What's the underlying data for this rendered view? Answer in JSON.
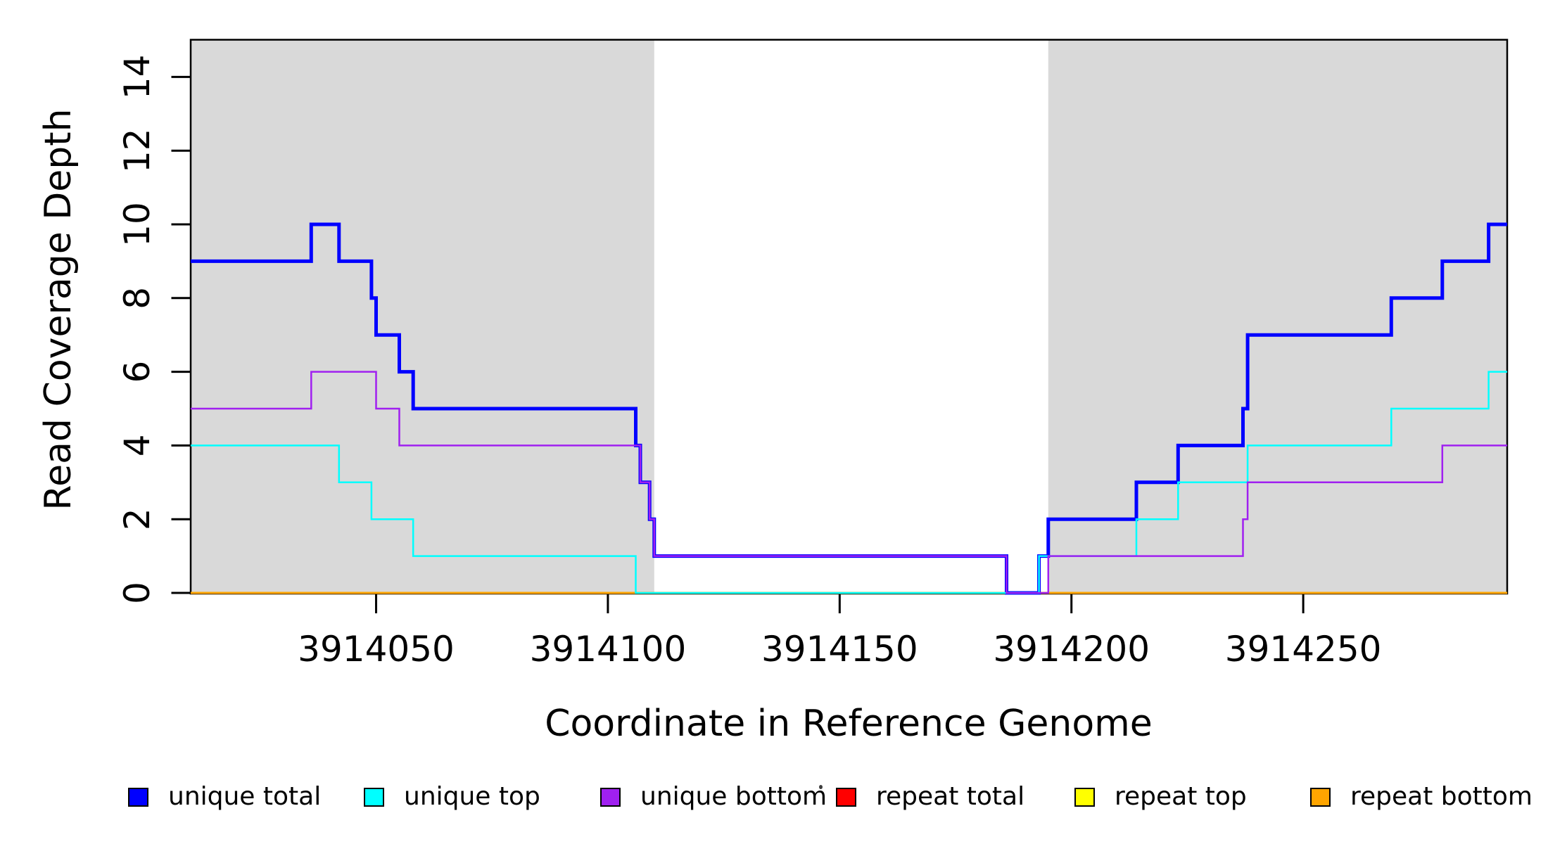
{
  "chart_data": {
    "type": "line",
    "subtype": "step",
    "title": "",
    "xlabel": "Coordinate in Reference Genome",
    "ylabel": "Read Coverage Depth",
    "x_domain": [
      3914010,
      3914294
    ],
    "y_domain": [
      0,
      15
    ],
    "x_ticks": [
      3914050,
      3914100,
      3914150,
      3914200,
      3914250
    ],
    "y_ticks": [
      0,
      2,
      4,
      6,
      8,
      10,
      12,
      14
    ],
    "grid": false,
    "legend_position": "bottom",
    "shade_color": "#d9d9d9",
    "background_color": "#ffffff",
    "axis_color": "#000000",
    "shaded_x_regions": [
      [
        3914010,
        3914110
      ],
      [
        3914195,
        3914294
      ]
    ],
    "series": [
      {
        "name": "repeat total",
        "color": "#ff0000",
        "width": 2.5,
        "points": [
          [
            3914010,
            0
          ]
        ]
      },
      {
        "name": "repeat top",
        "color": "#ffff00",
        "width": 2.5,
        "points": [
          [
            3914010,
            0
          ]
        ]
      },
      {
        "name": "repeat bottom",
        "color": "#ffa500",
        "width": 3,
        "points": [
          [
            3914010,
            0
          ]
        ]
      },
      {
        "name": "unique total",
        "color": "#0000ff",
        "width": 5,
        "points": [
          [
            3914010,
            9
          ],
          [
            3914036,
            10
          ],
          [
            3914042,
            9
          ],
          [
            3914049,
            8
          ],
          [
            3914050,
            7
          ],
          [
            3914055,
            6
          ],
          [
            3914058,
            5
          ],
          [
            3914106,
            4
          ],
          [
            3914107,
            3
          ],
          [
            3914109,
            2
          ],
          [
            3914110,
            1
          ],
          [
            3914186,
            0
          ],
          [
            3914193,
            1
          ],
          [
            3914195,
            2
          ],
          [
            3914214,
            3
          ],
          [
            3914223,
            4
          ],
          [
            3914237,
            5
          ],
          [
            3914238,
            7
          ],
          [
            3914269,
            8
          ],
          [
            3914280,
            9
          ],
          [
            3914290,
            10
          ]
        ]
      },
      {
        "name": "unique top",
        "color": "#00ffff",
        "width": 2.5,
        "points": [
          [
            3914010,
            4
          ],
          [
            3914042,
            3
          ],
          [
            3914049,
            2
          ],
          [
            3914058,
            1
          ],
          [
            3914106,
            0
          ],
          [
            3914193,
            1
          ],
          [
            3914214,
            2
          ],
          [
            3914223,
            3
          ],
          [
            3914238,
            4
          ],
          [
            3914269,
            5
          ],
          [
            3914290,
            6
          ]
        ]
      },
      {
        "name": "unique bottom",
        "color": "#a020f0",
        "width": 2.5,
        "points": [
          [
            3914010,
            5
          ],
          [
            3914036,
            6
          ],
          [
            3914050,
            5
          ],
          [
            3914055,
            4
          ],
          [
            3914107,
            3
          ],
          [
            3914109,
            2
          ],
          [
            3914110,
            1
          ],
          [
            3914186,
            0
          ],
          [
            3914195,
            1
          ],
          [
            3914237,
            2
          ],
          [
            3914238,
            3
          ],
          [
            3914280,
            4
          ]
        ]
      }
    ]
  },
  "legend": {
    "items": [
      {
        "label": "unique total",
        "color": "#0000ff"
      },
      {
        "label": "unique top",
        "color": "#00ffff"
      },
      {
        "label": "unique bottom",
        "color": "#a020f0"
      },
      {
        "label": "repeat total",
        "color": "#ff0000"
      },
      {
        "label": "repeat top",
        "color": "#ffff00"
      },
      {
        "label": "repeat bottom",
        "color": "#ffa500"
      }
    ]
  }
}
